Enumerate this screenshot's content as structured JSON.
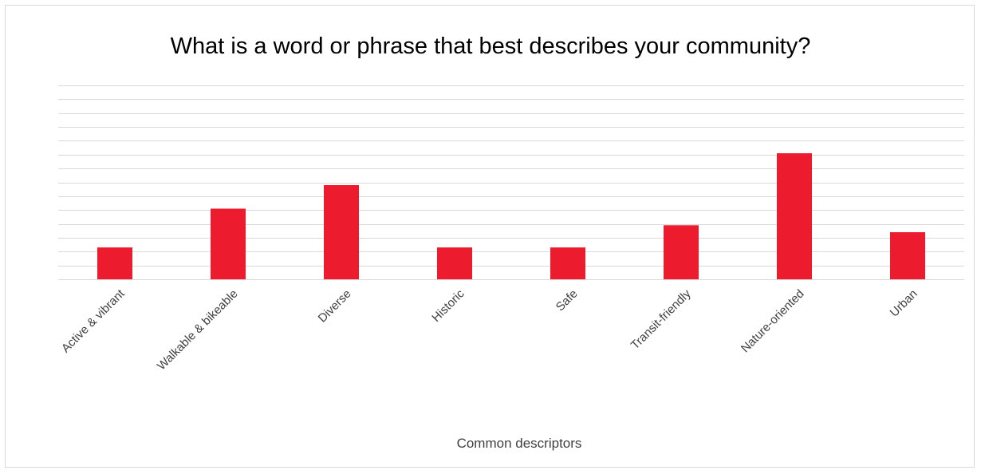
{
  "chart_data": {
    "type": "bar",
    "title": "What is a word or phrase that best describes your community?",
    "xlabel": "Common descriptors",
    "ylabel": "",
    "categories": [
      "Active & vibrant",
      "Walkable & bikeable",
      "Diverse",
      "Historic",
      "Safe",
      "Transit-friendly",
      "Nature-oriented",
      "Urban"
    ],
    "values": [
      2.3,
      5.1,
      6.8,
      2.3,
      2.3,
      3.9,
      9.1,
      3.4
    ],
    "ylim": [
      0,
      14
    ],
    "grid": true,
    "legend": "none",
    "bar_color": "#ec1c2e",
    "grid_color": "#d9d9d9"
  }
}
